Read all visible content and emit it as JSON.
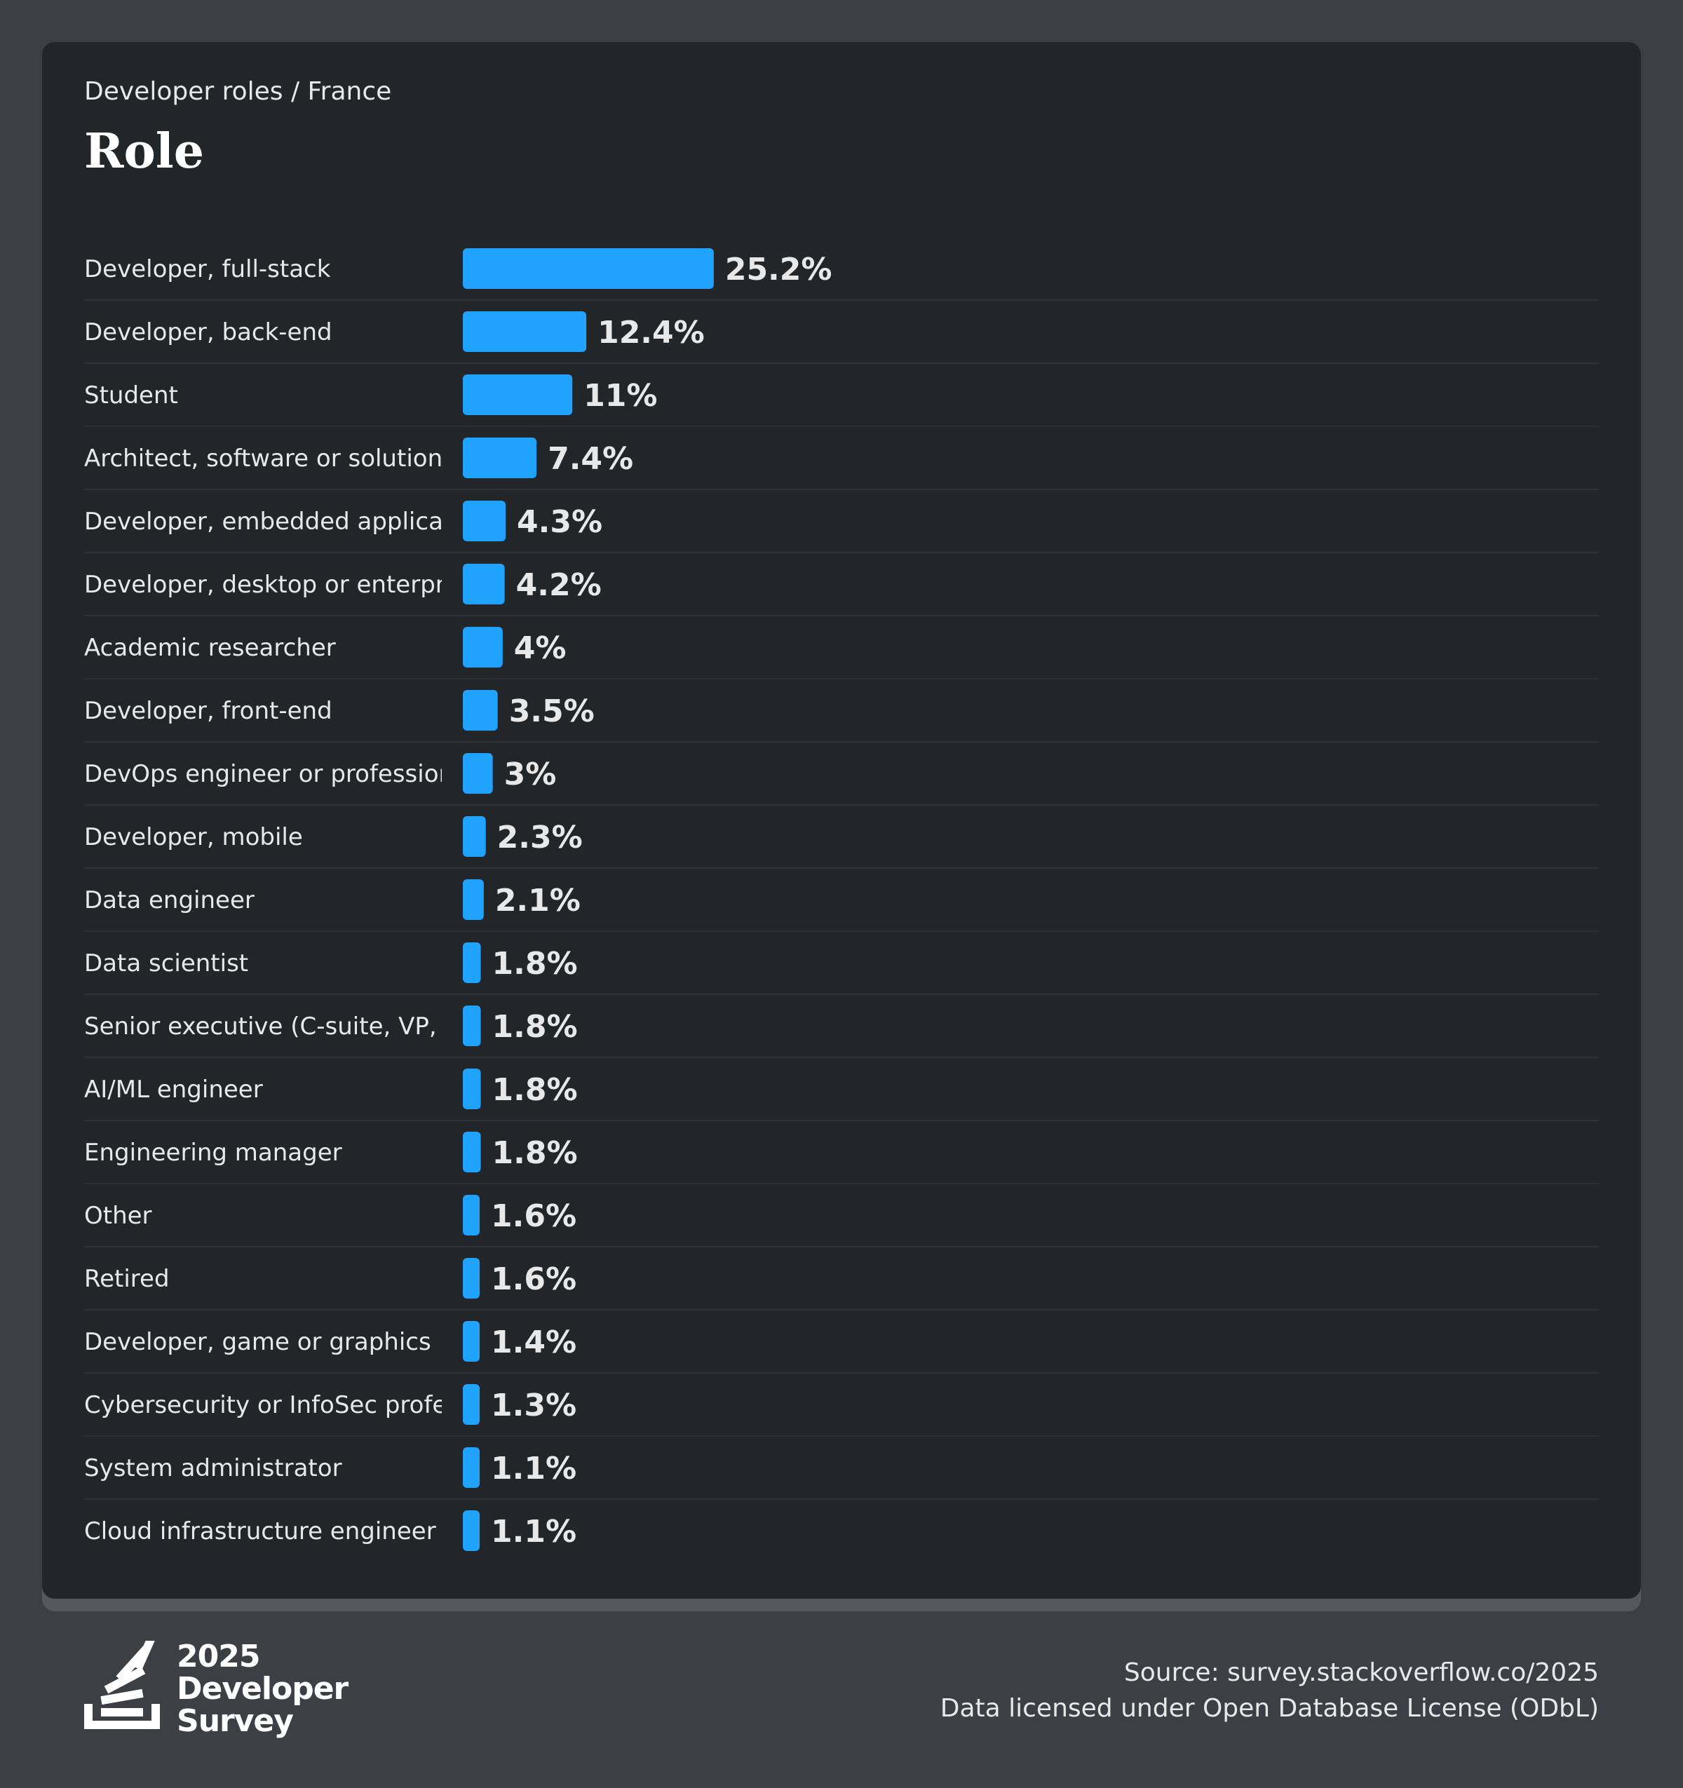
{
  "header": {
    "subtitle": "Developer roles / France",
    "title": "Role"
  },
  "colors": {
    "background": "#3c4044",
    "card": "#232629",
    "bar": "#1fa3ff",
    "label": "#e8e8e8",
    "value": "#e8e8e8",
    "divider": "#2f3337"
  },
  "chart_data": {
    "type": "bar",
    "orientation": "horizontal",
    "title": "Role",
    "subtitle": "Developer roles / France",
    "categories": [
      "Developer, full-stack",
      "Developer, back-end",
      "Student",
      "Architect, software or solutions",
      "Developer, embedded applications or devices",
      "Developer, desktop or enterprise applications",
      "Academic researcher",
      "Developer, front-end",
      "DevOps engineer or professional",
      "Developer, mobile",
      "Data engineer",
      "Data scientist",
      "Senior executive (C-suite, VP, etc.)",
      "AI/ML engineer",
      "Engineering manager",
      "Other",
      "Retired",
      "Developer, game or graphics",
      "Cybersecurity or InfoSec professional",
      "System administrator",
      "Cloud infrastructure engineer"
    ],
    "values": [
      25.2,
      12.4,
      11,
      7.4,
      4.3,
      4.2,
      4,
      3.5,
      3,
      2.3,
      2.1,
      1.8,
      1.8,
      1.8,
      1.8,
      1.6,
      1.6,
      1.4,
      1.3,
      1.1,
      1.1
    ],
    "value_labels": [
      "25.2%",
      "12.4%",
      "11%",
      "7.4%",
      "4.3%",
      "4.2%",
      "4%",
      "3.5%",
      "3%",
      "2.3%",
      "2.1%",
      "1.8%",
      "1.8%",
      "1.8%",
      "1.8%",
      "1.6%",
      "1.6%",
      "1.4%",
      "1.3%",
      "1.1%",
      "1.1%"
    ],
    "unit": "%",
    "grid": false,
    "legend": "none"
  },
  "footer": {
    "source": "Source: survey.stackoverflow.co/2025",
    "license": "Data licensed under Open Database License (ODbL)"
  },
  "logo": {
    "year": "2025",
    "line1": "Developer",
    "line2": "Survey",
    "icon": "stack-overflow-logo-icon"
  }
}
